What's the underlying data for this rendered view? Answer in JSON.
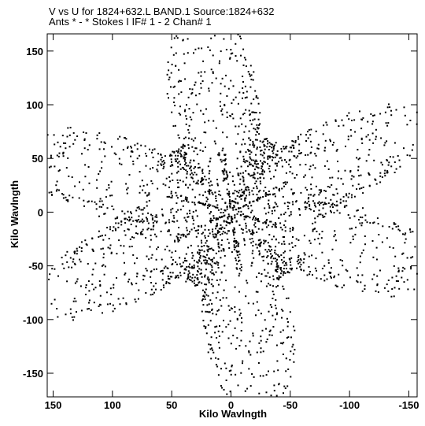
{
  "chart_data": {
    "type": "scatter",
    "title_line1": "V vs U for 1824+632.L BAND.1   Source:1824+632",
    "title_line2": "Ants * - *     Stokes I  IF# 1 - 2  Chan# 1",
    "xlabel": "Kilo Wavlngth",
    "ylabel": "Kilo Wavlngth",
    "xlim": [
      155,
      -157
    ],
    "ylim": [
      -172,
      166
    ],
    "x_ticks": [
      150,
      100,
      50,
      0,
      -50,
      -100,
      -150
    ],
    "y_ticks": [
      150,
      100,
      50,
      0,
      -50,
      -100,
      -150
    ],
    "x_tick_labels": [
      "150",
      "100",
      "50",
      "0",
      "-50",
      "-100",
      "-150"
    ],
    "y_tick_labels": [
      "150",
      "100",
      "50",
      "0",
      "-50",
      "-100",
      "-150"
    ],
    "grid": false,
    "legend": "none",
    "point_color": "#000000",
    "pattern": "snapshot uv-coverage; 6-arm radial star, arms at ~18, 82, 152 deg and conjugates, dense tracks near origin",
    "arm_angles_deg": [
      18,
      82,
      152,
      198,
      262,
      332
    ],
    "arm_tip_radius_kl": [
      165,
      163,
      155,
      165,
      163,
      155
    ]
  }
}
